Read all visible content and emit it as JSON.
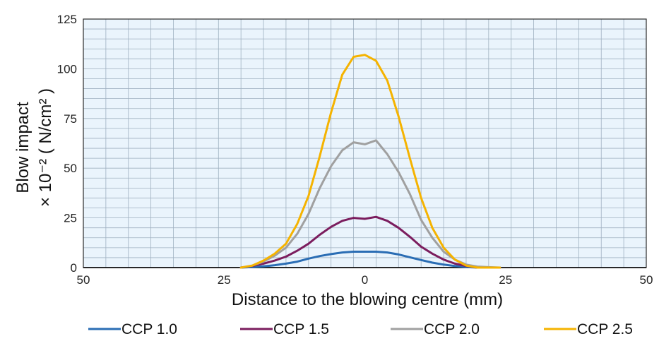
{
  "chart_data": {
    "type": "line",
    "xlabel": "Distance to the blowing centre (mm)",
    "ylabel_line1": "Blow impact",
    "ylabel_line2": "× 10⁻² ( N/cm² )",
    "x_ticks": [
      "50",
      "25",
      "0",
      "25",
      "50"
    ],
    "y_ticks": [
      "0",
      "25",
      "50",
      "75",
      "100",
      "125"
    ],
    "xlim": [
      -50,
      50
    ],
    "ylim": [
      0,
      125
    ],
    "grid": true,
    "legend_position": "bottom",
    "x": [
      -22,
      -20,
      -18,
      -16,
      -14,
      -12,
      -10,
      -8,
      -6,
      -4,
      -2,
      0,
      2,
      4,
      6,
      8,
      10,
      12,
      14,
      16,
      18,
      20,
      22,
      24
    ],
    "series": [
      {
        "name": "CCP 1.0",
        "color": "#2a6db4",
        "values": [
          0,
          0.3,
          0.6,
          1.2,
          2,
          3,
          4.5,
          5.8,
          6.8,
          7.6,
          8,
          8,
          8,
          7.6,
          6.6,
          5.2,
          3.8,
          2.5,
          1.5,
          0.8,
          0.3,
          0,
          0,
          0
        ]
      },
      {
        "name": "CCP 1.5",
        "color": "#7b1d5e",
        "values": [
          0,
          0.8,
          2,
          3.5,
          5.5,
          8.5,
          12,
          16.5,
          20.5,
          23.5,
          25,
          24.5,
          25.5,
          23.5,
          20,
          15.5,
          10.5,
          7,
          4,
          2,
          0.8,
          0,
          0,
          0
        ]
      },
      {
        "name": "CCP 2.0",
        "color": "#a0a0a0",
        "values": [
          0,
          1,
          3,
          6,
          10,
          17,
          27,
          40,
          51,
          59,
          63,
          62,
          64,
          57,
          48,
          37,
          24,
          15,
          8,
          4,
          1.5,
          0.5,
          0.2,
          0
        ]
      },
      {
        "name": "CCP 2.5",
        "color": "#f5b300",
        "values": [
          0,
          1,
          3.5,
          7,
          12,
          22,
          36,
          56,
          78,
          97,
          106,
          107,
          104,
          94,
          76,
          55,
          35,
          20,
          10,
          4,
          1,
          0,
          0,
          0
        ]
      }
    ]
  }
}
